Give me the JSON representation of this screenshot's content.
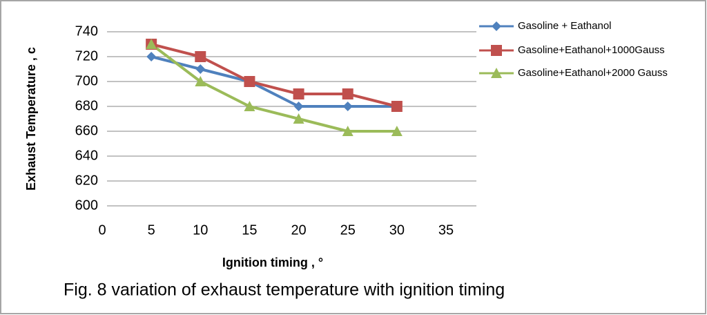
{
  "chart_data": {
    "type": "line",
    "title": "Fig. 8    variation of exhaust temperature with ignition timing",
    "x_label": "Ignition timing , °",
    "y_label": "Exhaust Temperature , c",
    "x": [
      5,
      10,
      15,
      20,
      25,
      30
    ],
    "series": [
      {
        "name": "Gasoline + Eathanol",
        "color": "#4f81bd",
        "marker": "diamond",
        "values": [
          720,
          710,
          700,
          680,
          680,
          680
        ]
      },
      {
        "name": "Gasoline+Eathanol+1000Gauss",
        "color": "#c0504d",
        "marker": "square",
        "values": [
          730,
          720,
          700,
          690,
          690,
          680
        ]
      },
      {
        "name": "Gasoline+Eathanol+2000 Gauss",
        "color": "#9bbb59",
        "marker": "triangle",
        "values": [
          730,
          700,
          680,
          670,
          660,
          660
        ]
      }
    ],
    "xlim": [
      0,
      35
    ],
    "xticks": [
      0,
      5,
      10,
      15,
      20,
      25,
      30,
      35
    ],
    "ylim": [
      600,
      740
    ],
    "yticks": [
      600,
      620,
      640,
      660,
      680,
      700,
      720,
      740
    ],
    "grid": true,
    "legend": "top-right"
  }
}
